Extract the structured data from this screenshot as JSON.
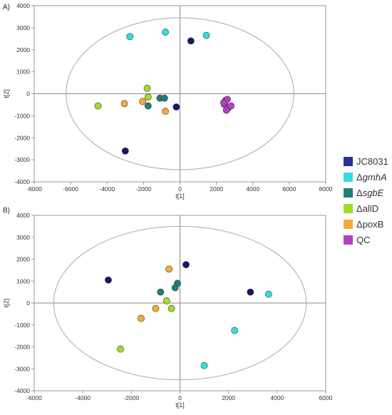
{
  "chart_data": [
    {
      "type": "scatter",
      "panel_label": "A)",
      "xlabel": "t[1]",
      "ylabel": "t[2]",
      "xlim": [
        -8000,
        8000
      ],
      "ylim": [
        -4000,
        4000
      ],
      "xticks": [
        -8000,
        -6000,
        -4000,
        -2000,
        0,
        2000,
        4000,
        6000,
        8000
      ],
      "yticks": [
        -4000,
        -3000,
        -2000,
        -1000,
        0,
        1000,
        2000,
        3000,
        4000
      ],
      "ellipse": {
        "cx": 0,
        "cy": 0,
        "rx": 6250,
        "ry": 3450
      },
      "series": [
        {
          "name": "JC8031",
          "color": "#16166b",
          "points": [
            [
              600,
              2400
            ],
            [
              -200,
              -600
            ],
            [
              -3000,
              -2600
            ]
          ]
        },
        {
          "name": "ΔgmhA",
          "color": "#33dde0",
          "points": [
            [
              -2750,
              2600
            ],
            [
              -800,
              2800
            ],
            [
              1450,
              2650
            ]
          ]
        },
        {
          "name": "ΔsgbE",
          "color": "#1f7f78",
          "points": [
            [
              -1100,
              -200
            ],
            [
              -850,
              -200
            ],
            [
              -1750,
              -550
            ]
          ]
        },
        {
          "name": "ΔallD",
          "color": "#a6dc26",
          "points": [
            [
              -4500,
              -550
            ],
            [
              -1800,
              250
            ],
            [
              -1750,
              -150
            ]
          ]
        },
        {
          "name": "ΔpoxB",
          "color": "#f5a93a",
          "points": [
            [
              -3050,
              -450
            ],
            [
              -2050,
              -350
            ],
            [
              -800,
              -800
            ]
          ]
        },
        {
          "name": "QC",
          "color": "#b33fc2",
          "points": [
            [
              2500,
              -300
            ],
            [
              2600,
              -250
            ],
            [
              2450,
              -500
            ],
            [
              2650,
              -650
            ],
            [
              2550,
              -750
            ],
            [
              2800,
              -550
            ],
            [
              2400,
              -400
            ]
          ]
        }
      ]
    },
    {
      "type": "scatter",
      "panel_label": "B)",
      "xlabel": "t[1]",
      "ylabel": "t[2]",
      "xlim": [
        -6000,
        6000
      ],
      "ylim": [
        -4000,
        4000
      ],
      "xticks": [
        -6000,
        -4000,
        -2000,
        0,
        2000,
        4000,
        6000
      ],
      "yticks": [
        -4000,
        -3000,
        -2000,
        -1000,
        0,
        1000,
        2000,
        3000,
        4000
      ],
      "ellipse": {
        "cx": 0,
        "cy": 0,
        "rx": 5200,
        "ry": 3500
      },
      "series": [
        {
          "name": "JC8031",
          "color": "#16166b",
          "points": [
            [
              -2950,
              1050
            ],
            [
              250,
              1750
            ],
            [
              2900,
              500
            ]
          ]
        },
        {
          "name": "ΔgmhA",
          "color": "#33dde0",
          "points": [
            [
              3650,
              400
            ],
            [
              2250,
              -1250
            ],
            [
              1000,
              -2850
            ]
          ]
        },
        {
          "name": "ΔsgbE",
          "color": "#1f7f78",
          "points": [
            [
              -800,
              500
            ],
            [
              -100,
              900
            ],
            [
              -200,
              700
            ]
          ]
        },
        {
          "name": "ΔallD",
          "color": "#a6dc26",
          "points": [
            [
              -550,
              100
            ],
            [
              -350,
              -250
            ],
            [
              -2450,
              -2100
            ]
          ]
        },
        {
          "name": "ΔpoxB",
          "color": "#f5a93a",
          "points": [
            [
              -450,
              1550
            ],
            [
              -1000,
              -250
            ],
            [
              -1600,
              -700
            ]
          ]
        }
      ]
    }
  ],
  "legend": {
    "placement": "right",
    "items": [
      {
        "label": "JC8031",
        "prefix": "",
        "italic": "",
        "suffix": "JC8031",
        "color": "#2a2f9a"
      },
      {
        "label": "ΔgmhA",
        "prefix": "Δ",
        "italic": "gmhA",
        "suffix": "",
        "color": "#33dde0"
      },
      {
        "label": "ΔsgbE",
        "prefix": "Δ",
        "italic": "sgbE",
        "suffix": "",
        "color": "#1f7f78"
      },
      {
        "label": "ΔallD",
        "prefix": "Δ",
        "italic": "",
        "suffix": "allD",
        "color": "#a6dc26"
      },
      {
        "label": "ΔpoxB",
        "prefix": "Δ",
        "italic": "",
        "suffix": "poxB",
        "color": "#f5a93a"
      },
      {
        "label": "QC",
        "prefix": "",
        "italic": "",
        "suffix": "QC",
        "color": "#b33fc2"
      }
    ]
  }
}
